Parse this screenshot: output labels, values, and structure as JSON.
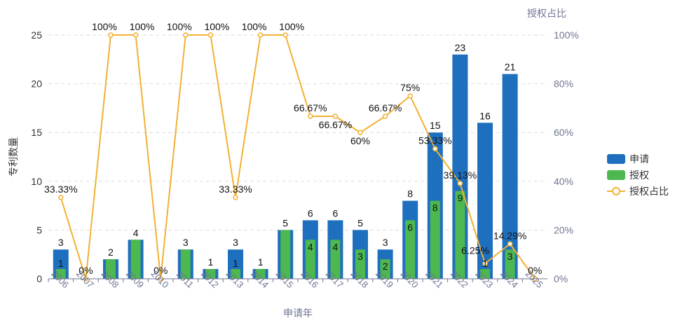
{
  "chart_data": {
    "type": "bar",
    "xlabel": "申请年",
    "ylabel": "专利数量",
    "y2label": "授权占比",
    "ylim": [
      0,
      25
    ],
    "y_ticks": [
      "0",
      "5",
      "10",
      "15",
      "20",
      "25"
    ],
    "y2lim": [
      0,
      100
    ],
    "y2_ticks": [
      "0%",
      "20%",
      "40%",
      "60%",
      "80%",
      "100%"
    ],
    "grid": true,
    "legend_position": "right",
    "categories": [
      "2006",
      "2007",
      "2008",
      "2009",
      "2010",
      "2011",
      "2012",
      "2013",
      "2014",
      "2015",
      "2016",
      "2017",
      "2018",
      "2019",
      "2020",
      "2021",
      "2022",
      "2023",
      "2024",
      "2025"
    ],
    "series": [
      {
        "name": "申请",
        "type": "bar",
        "color": "#1f6fbf",
        "values": [
          3,
          0,
          2,
          4,
          0,
          3,
          1,
          3,
          1,
          5,
          6,
          6,
          5,
          3,
          8,
          15,
          23,
          16,
          21,
          0
        ]
      },
      {
        "name": "授权",
        "type": "bar",
        "color": "#4cb84f",
        "values": [
          1,
          0,
          2,
          4,
          0,
          3,
          1,
          1,
          1,
          5,
          4,
          4,
          3,
          2,
          6,
          8,
          9,
          1,
          3,
          0
        ]
      },
      {
        "name": "授权占比",
        "type": "line",
        "axis": "right",
        "color": "#f2b134",
        "values": [
          33.33,
          0,
          100,
          100,
          0,
          100,
          100,
          33.33,
          100,
          100,
          66.67,
          66.67,
          60,
          66.67,
          75,
          53.33,
          39.13,
          6.25,
          14.29,
          0
        ],
        "labels": [
          "33.33%",
          "0%",
          "100%",
          "100%",
          "0%",
          "100%",
          "100%",
          "33.33%",
          "100%",
          "100%",
          "66.67%",
          "66.67%",
          "60%",
          "66.67%",
          "75%",
          "53.33%",
          "39.13%",
          "6.25%",
          "14.29%",
          "0%"
        ]
      }
    ]
  }
}
